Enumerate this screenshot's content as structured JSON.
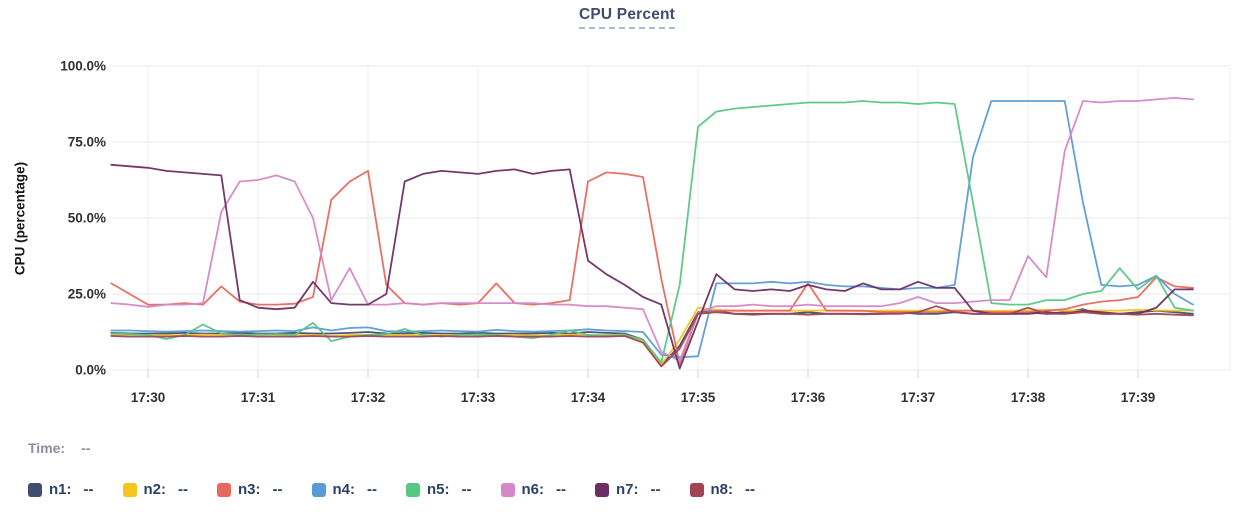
{
  "header": {
    "title": "CPU Percent"
  },
  "time_readout": {
    "label": "Time:",
    "value": "--"
  },
  "legend": {
    "items": [
      {
        "label": "n1:",
        "value": "--",
        "color": "#3e4e6f"
      },
      {
        "label": "n2:",
        "value": "--",
        "color": "#f3c51d"
      },
      {
        "label": "n3:",
        "value": "--",
        "color": "#e7695d"
      },
      {
        "label": "n4:",
        "value": "--",
        "color": "#5b9bd5"
      },
      {
        "label": "n5:",
        "value": "--",
        "color": "#57c785"
      },
      {
        "label": "n6:",
        "value": "--",
        "color": "#d687c8"
      },
      {
        "label": "n7:",
        "value": "--",
        "color": "#6c2f63"
      },
      {
        "label": "n8:",
        "value": "--",
        "color": "#a04456"
      }
    ]
  },
  "chart_data": {
    "type": "line",
    "title": "CPU Percent",
    "xlabel": "",
    "ylabel": "CPU (percentage)",
    "ylim": [
      0,
      100
    ],
    "grid": true,
    "legend_position": "bottom",
    "y_ticks": [
      {
        "label": "0.0%",
        "value": 0
      },
      {
        "label": "25.0%",
        "value": 25
      },
      {
        "label": "50.0%",
        "value": 50
      },
      {
        "label": "75.0%",
        "value": 75
      },
      {
        "label": "100.0%",
        "value": 100
      }
    ],
    "x_ticks": [
      {
        "label": "17:30",
        "t": 0
      },
      {
        "label": "17:31",
        "t": 60
      },
      {
        "label": "17:32",
        "t": 120
      },
      {
        "label": "17:33",
        "t": 180
      },
      {
        "label": "17:34",
        "t": 240
      },
      {
        "label": "17:35",
        "t": 300
      },
      {
        "label": "17:36",
        "t": 360
      },
      {
        "label": "17:37",
        "t": 420
      },
      {
        "label": "17:38",
        "t": 480
      },
      {
        "label": "17:39",
        "t": 540
      }
    ],
    "x_seconds": [
      -20,
      -10,
      0,
      10,
      20,
      30,
      40,
      50,
      60,
      70,
      80,
      90,
      100,
      110,
      120,
      130,
      140,
      150,
      160,
      170,
      180,
      190,
      200,
      210,
      220,
      230,
      240,
      250,
      260,
      270,
      280,
      290,
      300,
      310,
      320,
      330,
      340,
      350,
      360,
      370,
      380,
      390,
      400,
      410,
      420,
      430,
      440,
      450,
      460,
      470,
      480,
      490,
      500,
      510,
      520,
      530,
      540,
      550,
      560,
      570
    ],
    "series": [
      {
        "name": "n1",
        "color": "#3e4e6f",
        "values": [
          12.2,
          12,
          12,
          12,
          12.2,
          12,
          12,
          12.2,
          12,
          12,
          12.2,
          12,
          12,
          12.2,
          12.5,
          12,
          12,
          12.2,
          12,
          12,
          12.2,
          12,
          12,
          12,
          12.2,
          12,
          12.5,
          12.2,
          12,
          10,
          1.5,
          8,
          19,
          19.5,
          18.5,
          18.5,
          18.5,
          18.5,
          19,
          18.5,
          18.5,
          18.5,
          18.5,
          19,
          18.5,
          18.5,
          19,
          18.5,
          18.5,
          18.5,
          19,
          18.5,
          19,
          20,
          18.5,
          18.5,
          19,
          19.5,
          19,
          18.5
        ]
      },
      {
        "name": "n2",
        "color": "#f3c51d",
        "values": [
          11.6,
          11.5,
          11.5,
          11.4,
          11.5,
          11.6,
          11.5,
          11.5,
          11.6,
          11.5,
          11.4,
          11.5,
          11.2,
          11.5,
          11.6,
          11.5,
          11.5,
          11.4,
          11.5,
          11.5,
          11.6,
          11.5,
          11.5,
          11.3,
          11.5,
          11.6,
          11.5,
          11.5,
          11.6,
          9.5,
          1.8,
          10,
          20.5,
          19.8,
          19.5,
          19.5,
          19.6,
          19.5,
          19.5,
          19.6,
          19.5,
          19.4,
          19.5,
          19.5,
          19.5,
          19.6,
          19.5,
          19.5,
          19.4,
          19.5,
          19.6,
          19.8,
          19.5,
          19.5,
          19.6,
          19.5,
          19.8,
          19.6,
          19.5,
          19.6
        ]
      },
      {
        "name": "n3",
        "color": "#e7695d",
        "values": [
          28.5,
          25,
          21.5,
          21.5,
          22,
          21.5,
          27.5,
          22.5,
          21.5,
          21.5,
          21.8,
          24,
          56,
          62,
          65.5,
          28,
          22,
          21.5,
          22,
          21.5,
          22,
          28.5,
          22,
          21.5,
          22,
          23,
          62,
          65,
          64.5,
          63.5,
          30,
          2,
          18.5,
          19.5,
          19.5,
          19.5,
          19.5,
          19.5,
          28.5,
          19.5,
          19.5,
          19.5,
          19,
          19,
          19,
          19,
          19.5,
          19.5,
          19,
          19,
          19,
          19.5,
          20,
          21.5,
          22.5,
          23,
          24,
          30.5,
          27.5,
          27
        ]
      },
      {
        "name": "n4",
        "color": "#5b9bd5",
        "values": [
          13,
          13,
          12.8,
          12.6,
          12.8,
          13,
          12.8,
          12.6,
          12.8,
          13,
          12.8,
          14,
          13,
          13.8,
          14,
          12.8,
          12.6,
          12.8,
          13,
          12.8,
          12.6,
          13.2,
          12.8,
          12.6,
          12.8,
          13,
          13.4,
          13,
          12.8,
          12.5,
          5,
          4.2,
          4.5,
          28.5,
          28.5,
          28.5,
          29,
          28.5,
          29,
          28,
          27.5,
          27.5,
          27,
          26.5,
          27,
          27,
          28,
          70,
          88.5,
          88.5,
          88.5,
          88.5,
          88.5,
          55,
          28,
          27.5,
          28,
          31,
          25,
          21.5
        ]
      },
      {
        "name": "n5",
        "color": "#57c785",
        "values": [
          12,
          11.8,
          11.5,
          10.2,
          11.5,
          15,
          12,
          11.5,
          11.6,
          11.8,
          11.5,
          15.5,
          9.5,
          11,
          11.5,
          11.8,
          13.5,
          11.5,
          11,
          11.5,
          11.6,
          11.5,
          11,
          10.5,
          11.5,
          13,
          11.5,
          11.3,
          11.5,
          10,
          2.5,
          28,
          80,
          85,
          86,
          86.5,
          87,
          87.5,
          88,
          88,
          88,
          88.5,
          88,
          88,
          87.5,
          88,
          87.5,
          55,
          22,
          21.5,
          21.5,
          23,
          23,
          25,
          26,
          33.5,
          26.5,
          31,
          20.5,
          19.5
        ]
      },
      {
        "name": "n6",
        "color": "#d687c8",
        "values": [
          22,
          21.5,
          20.8,
          21.5,
          21.5,
          22,
          52,
          62,
          62.5,
          64,
          62,
          50,
          23,
          33.5,
          21.5,
          21.5,
          22,
          21.5,
          22,
          22,
          22,
          22,
          22,
          22,
          21.5,
          21.5,
          21,
          21,
          20.5,
          20,
          6,
          3,
          19,
          21,
          21,
          21.5,
          21,
          21,
          21.5,
          21,
          21,
          21,
          21,
          22,
          24,
          22,
          22,
          22.5,
          23,
          23,
          37.5,
          30.5,
          72,
          88.5,
          88,
          88.5,
          88.5,
          89,
          89.5,
          89
        ]
      },
      {
        "name": "n7",
        "color": "#6c2f63",
        "values": [
          67.5,
          67,
          66.5,
          65.5,
          65,
          64.5,
          64,
          23,
          20.5,
          20,
          20.5,
          29,
          22,
          21.5,
          21.5,
          25,
          62,
          64.5,
          65.5,
          65,
          64.5,
          65.5,
          66,
          64.5,
          65.5,
          66,
          36,
          31.5,
          28,
          24,
          21.5,
          0.5,
          16,
          31.5,
          26.5,
          26,
          26.5,
          26,
          28,
          26.5,
          26,
          28.5,
          26.5,
          26.5,
          29,
          27,
          27,
          19.5,
          18.5,
          18.5,
          18.5,
          19,
          18.5,
          19.5,
          19,
          18.5,
          18.5,
          20.5,
          26.5,
          26.5
        ]
      },
      {
        "name": "n8",
        "color": "#a04456",
        "values": [
          11.2,
          11,
          11,
          11,
          11.2,
          11,
          11,
          11.2,
          11,
          11,
          11,
          11.2,
          11,
          11,
          11.2,
          11,
          11,
          11,
          11.2,
          11,
          11,
          11.2,
          11,
          11,
          11,
          11.2,
          11,
          11,
          11.2,
          9,
          1.2,
          7,
          18.5,
          19,
          18.5,
          18.2,
          18.5,
          18.5,
          18.2,
          18.5,
          18.5,
          18.3,
          18.5,
          18.5,
          19,
          21,
          19,
          18.5,
          18.5,
          18.5,
          20.5,
          18.5,
          18.5,
          19,
          18.5,
          18.5,
          18.2,
          18.5,
          18.2,
          18
        ]
      }
    ]
  }
}
